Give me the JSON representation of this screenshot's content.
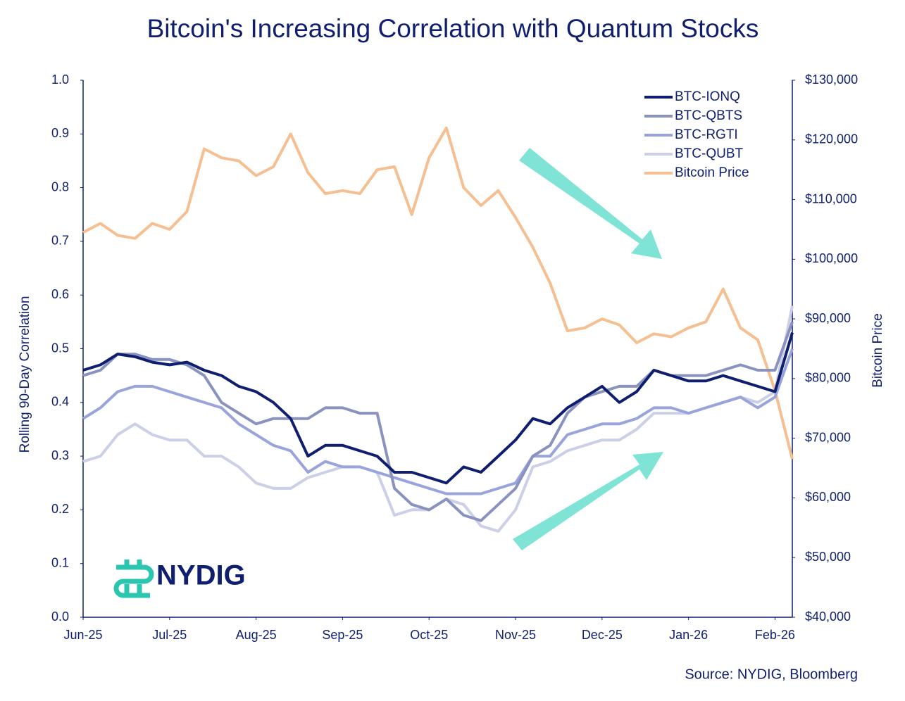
{
  "chart_data": {
    "type": "line",
    "title": "Bitcoin's Increasing Correlation with Quantum Stocks",
    "y_label": "Rolling 90-Day Correlation",
    "y2_label": "Bitcoin Price",
    "source": "Source: NYDIG, Bloomberg",
    "logo_text": "NYDIG",
    "legend": "upper right",
    "grid": false,
    "categories": [
      "Jun-25",
      null,
      null,
      null,
      null,
      "Jul-25",
      null,
      null,
      null,
      null,
      "Aug-25",
      null,
      null,
      null,
      null,
      "Sep-25",
      null,
      null,
      null,
      null,
      "Oct-25",
      null,
      null,
      null,
      null,
      "Nov-25",
      null,
      null,
      null,
      null,
      "Dec-25",
      null,
      null,
      null,
      null,
      "Jan-26",
      null,
      null,
      null,
      null,
      "Feb-26",
      null
    ],
    "ylim": [
      0,
      1
    ],
    "yticks": [
      {
        "value": 0,
        "label": "0.0"
      },
      0.1,
      0.2,
      0.3,
      0.4,
      0.5,
      0.6,
      0.7,
      0.8,
      0.9,
      {
        "value": 1,
        "label": "1.0"
      }
    ],
    "y2lim": [
      40000,
      130000
    ],
    "y2ticks": [
      {
        "value": 40000,
        "label": "$40,000"
      },
      {
        "value": 50000,
        "label": "$50,000"
      },
      {
        "value": 60000,
        "label": "$60,000"
      },
      {
        "value": 70000,
        "label": "$70,000"
      },
      {
        "value": 80000,
        "label": "$80,000"
      },
      {
        "value": 90000,
        "label": "$90,000"
      },
      {
        "value": 100000,
        "label": "$100,000"
      },
      {
        "value": 110000,
        "label": "$110,000"
      },
      {
        "value": 120000,
        "label": "$120,000"
      },
      {
        "value": 130000,
        "label": "$130,000"
      }
    ],
    "series": [
      {
        "name": "BTC-IONQ",
        "color": "#0f1e6e",
        "width": 4,
        "values": [
          0.46,
          0.47,
          0.49,
          0.485,
          0.475,
          0.47,
          0.475,
          0.46,
          0.45,
          0.43,
          0.42,
          0.4,
          0.37,
          0.3,
          0.32,
          0.32,
          0.31,
          0.3,
          0.27,
          0.27,
          0.26,
          0.25,
          0.28,
          0.27,
          0.3,
          0.33,
          0.37,
          0.36,
          0.39,
          0.41,
          0.43,
          0.4,
          0.42,
          0.46,
          0.45,
          0.44,
          0.44,
          0.45,
          0.44,
          0.43,
          0.42,
          0.53
        ]
      },
      {
        "name": "BTC-QBTS",
        "color": "#8a92bf",
        "width": 4,
        "values": [
          0.45,
          0.46,
          0.49,
          0.49,
          0.48,
          0.48,
          0.47,
          0.45,
          0.4,
          0.38,
          0.36,
          0.37,
          0.37,
          0.37,
          0.39,
          0.39,
          0.38,
          0.38,
          0.24,
          0.21,
          0.2,
          0.22,
          0.19,
          0.18,
          0.21,
          0.24,
          0.3,
          0.32,
          0.38,
          0.41,
          0.42,
          0.43,
          0.43,
          0.46,
          0.45,
          0.45,
          0.45,
          0.46,
          0.47,
          0.46,
          0.46,
          0.55
        ]
      },
      {
        "name": "BTC-RGTI",
        "color": "#9aa4dc",
        "width": 4,
        "values": [
          0.37,
          0.39,
          0.42,
          0.43,
          0.43,
          0.42,
          0.41,
          0.4,
          0.39,
          0.36,
          0.34,
          0.32,
          0.31,
          0.27,
          0.29,
          0.28,
          0.28,
          0.27,
          0.26,
          0.25,
          0.24,
          0.23,
          0.23,
          0.23,
          0.24,
          0.25,
          0.3,
          0.3,
          0.34,
          0.35,
          0.36,
          0.36,
          0.37,
          0.39,
          0.39,
          0.38,
          0.39,
          0.4,
          0.41,
          0.39,
          0.41,
          0.5
        ]
      },
      {
        "name": "BTC-QUBT",
        "color": "#ccd0e6",
        "width": 4,
        "values": [
          0.29,
          0.3,
          0.34,
          0.36,
          0.34,
          0.33,
          0.33,
          0.3,
          0.3,
          0.28,
          0.25,
          0.24,
          0.24,
          0.26,
          0.27,
          0.28,
          0.28,
          0.27,
          0.19,
          0.2,
          0.2,
          0.22,
          0.21,
          0.17,
          0.16,
          0.2,
          0.28,
          0.29,
          0.31,
          0.32,
          0.33,
          0.33,
          0.35,
          0.38,
          0.38,
          0.38,
          0.39,
          0.4,
          0.41,
          0.4,
          0.42,
          0.58
        ]
      },
      {
        "name": "Bitcoin Price",
        "color": "#f6bf91",
        "width": 4,
        "axis": "y2",
        "values": [
          104500,
          106000,
          104000,
          103500,
          106000,
          105000,
          108000,
          118500,
          117000,
          116500,
          114000,
          115500,
          121000,
          114500,
          111000,
          111500,
          111000,
          115000,
          115500,
          107500,
          117000,
          122000,
          112000,
          109000,
          111500,
          107000,
          102000,
          96000,
          88000,
          88500,
          90000,
          89000,
          86000,
          87500,
          87000,
          88500,
          89500,
          95000,
          88500,
          86500,
          78000,
          66500
        ]
      }
    ]
  }
}
